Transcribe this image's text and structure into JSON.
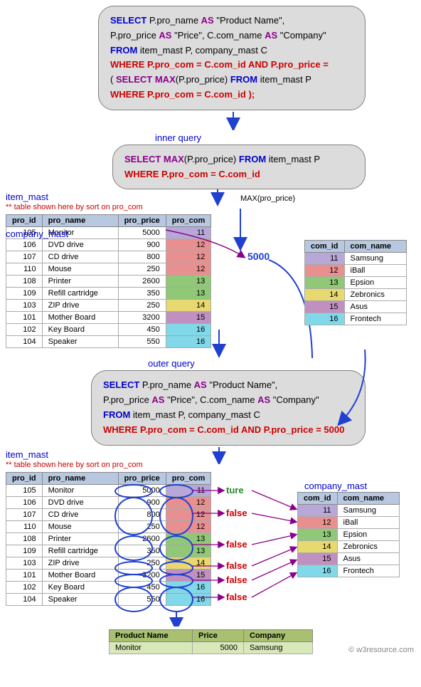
{
  "sql_main": {
    "l1_a": "SELECT",
    "l1_b": " P.pro_name ",
    "l1_c": "AS",
    "l1_d": " \"Product Name\",",
    "l2_a": "P.pro_price ",
    "l2_b": "AS",
    "l2_c": " \"Price\", C.com_name ",
    "l2_d": "AS",
    "l2_e": " \"Company\"",
    "l3_a": "FROM",
    "l3_b": " item_mast P, company_mast C",
    "l4_a": "WHERE",
    "l4_b": " P.pro_com = C.com_id ",
    "l4_c": "AND",
    "l4_d": " P.pro_price =",
    "l5_a": "( ",
    "l5_b": "SELECT MAX",
    "l5_c": "(P.pro_price) ",
    "l5_d": "FROM",
    "l5_e": " item_mast P",
    "l6_a": "WHERE",
    "l6_b": " P.pro_com = C.com_id );"
  },
  "sql_inner": {
    "l1_a": "SELECT MAX",
    "l1_b": "(P.pro_price)  ",
    "l1_c": "FROM",
    "l1_d": " item_mast P",
    "l2_a": "WHERE",
    "l2_b": " P.pro_com = C.com_id"
  },
  "sql_outer": {
    "l1_a": "SELECT",
    "l1_b": " P.pro_name ",
    "l1_c": "AS",
    "l1_d": " \"Product Name\",",
    "l2_a": "P.pro_price ",
    "l2_b": "AS",
    "l2_c": " \"Price\", C.com_name ",
    "l2_d": "AS",
    "l2_e": " \"Company\"",
    "l3_a": "FROM",
    "l3_b": " item_mast P, company_mast C",
    "l4_a": "WHERE",
    "l4_b": " P.pro_com = C.com_id ",
    "l4_c": "AND",
    "l4_d": " P.pro_price = 5000"
  },
  "labels": {
    "inner_query": "inner query",
    "outer_query": "outer query",
    "max_label": "MAX(pro_price)",
    "item_mast": "item_mast",
    "company_mast": "company_mast",
    "sort_note": "** table shown here  by sort on pro_com",
    "val5000": "5000",
    "credit": "© w3resource.com"
  },
  "item_headers": {
    "c0": "pro_id",
    "c1": "pro_name",
    "c2": "pro_price",
    "c3": "pro_com"
  },
  "company_headers": {
    "c0": "com_id",
    "c1": "com_name"
  },
  "item_rows": [
    {
      "id": "105",
      "name": "Monitor",
      "price": "5000",
      "com": "11",
      "color": "#b8a8d8"
    },
    {
      "id": "106",
      "name": "DVD drive",
      "price": "900",
      "com": "12",
      "color": "#e89090"
    },
    {
      "id": "107",
      "name": "CD drive",
      "price": "800",
      "com": "12",
      "color": "#e89090"
    },
    {
      "id": "110",
      "name": "Mouse",
      "price": "250",
      "com": "12",
      "color": "#e89090"
    },
    {
      "id": "108",
      "name": "Printer",
      "price": "2600",
      "com": "13",
      "color": "#90c878"
    },
    {
      "id": "109",
      "name": "Refill cartridge",
      "price": "350",
      "com": "13",
      "color": "#90c878"
    },
    {
      "id": "103",
      "name": "ZIP drive",
      "price": "250",
      "com": "14",
      "color": "#e8d870"
    },
    {
      "id": "101",
      "name": "Mother Board",
      "price": "3200",
      "com": "15",
      "color": "#c090c0"
    },
    {
      "id": "102",
      "name": "Key Board",
      "price": "450",
      "com": "16",
      "color": "#80d8e8"
    },
    {
      "id": "104",
      "name": "Speaker",
      "price": "550",
      "com": "16",
      "color": "#80d8e8"
    }
  ],
  "company_rows": [
    {
      "id": "11",
      "name": "Samsung",
      "color": "#b8a8d8"
    },
    {
      "id": "12",
      "name": "iBall",
      "color": "#e89090"
    },
    {
      "id": "13",
      "name": "Epsion",
      "color": "#90c878"
    },
    {
      "id": "14",
      "name": "Zebronics",
      "color": "#e8d870"
    },
    {
      "id": "15",
      "name": "Asus",
      "color": "#c090c0"
    },
    {
      "id": "16",
      "name": "Frontech",
      "color": "#80d8e8"
    }
  ],
  "result_headers": {
    "c0": "Product Name",
    "c1": "Price",
    "c2": "Company"
  },
  "result_row": {
    "c0": "Monitor",
    "c1": "5000",
    "c2": "Samsung"
  },
  "tf": {
    "t": "ture",
    "f1": "false",
    "f2": "false",
    "f3": "false",
    "f4": "false",
    "f5": "false"
  }
}
